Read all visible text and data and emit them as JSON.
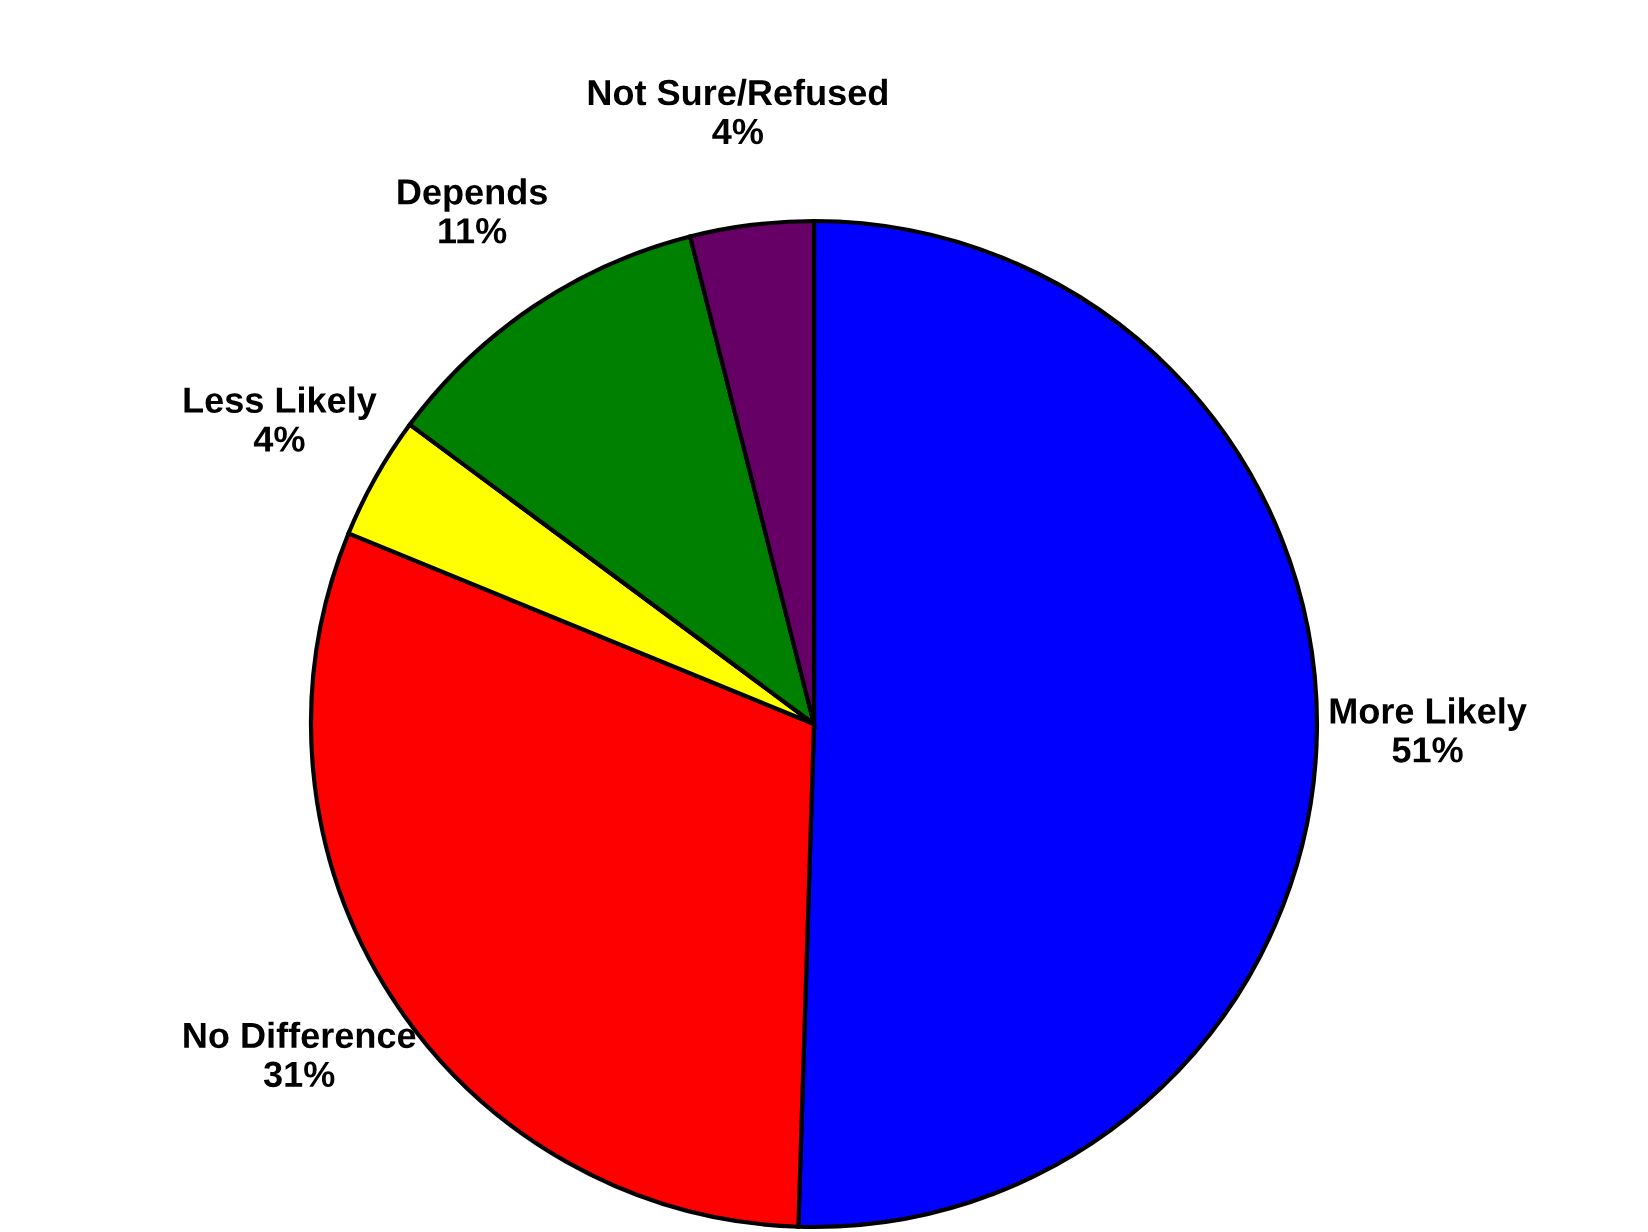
{
  "chart_data": {
    "type": "pie",
    "categories": [
      "More Likely",
      "No Difference",
      "Less Likely",
      "Depends",
      "Not Sure/Refused"
    ],
    "values": [
      51,
      31,
      4,
      11,
      4
    ],
    "value_labels": [
      "51%",
      "31%",
      "4%",
      "11%",
      "4%"
    ],
    "colors": [
      "#0000ff",
      "#ff0000",
      "#ffff00",
      "#008000",
      "#660066"
    ]
  }
}
